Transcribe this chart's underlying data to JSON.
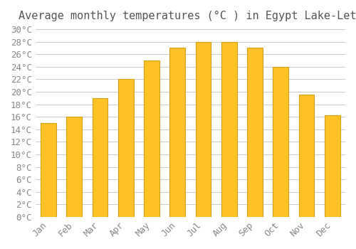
{
  "title": "Average monthly temperatures (°C ) in Egypt Lake-Leto",
  "months": [
    "Jan",
    "Feb",
    "Mar",
    "Apr",
    "May",
    "Jun",
    "Jul",
    "Aug",
    "Sep",
    "Oct",
    "Nov",
    "Dec"
  ],
  "temperatures": [
    15,
    16,
    19,
    22,
    25,
    27,
    28,
    28,
    27,
    24,
    19.5,
    16.2
  ],
  "bar_color": "#FFC125",
  "bar_edge_color": "#D4A017",
  "background_color": "#FFFFFF",
  "grid_color": "#CCCCCC",
  "title_color": "#555555",
  "tick_label_color": "#888888",
  "ylim": [
    0,
    30
  ],
  "ytick_step": 2,
  "title_fontsize": 11,
  "tick_fontsize": 9,
  "font_family": "monospace"
}
